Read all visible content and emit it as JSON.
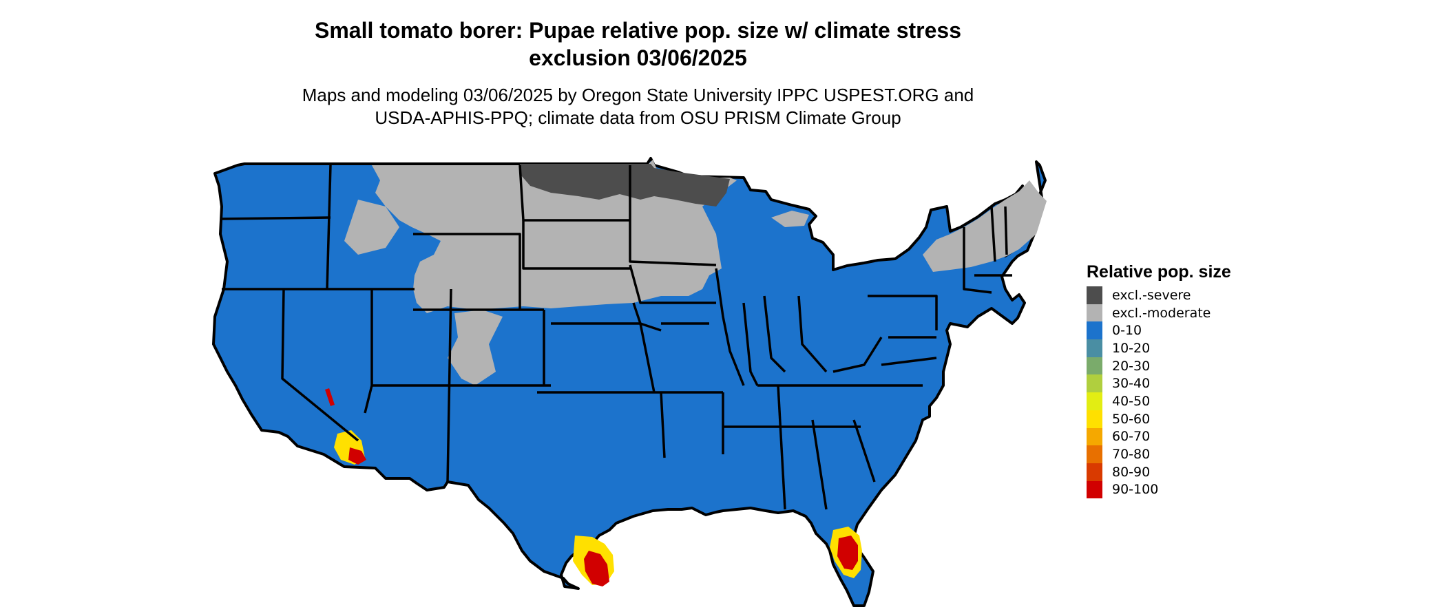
{
  "title_line1": "Small tomato borer: Pupae relative pop. size w/ climate stress",
  "title_line2": "exclusion 03/06/2025",
  "subtitle_line1": "Maps and modeling 03/06/2025 by Oregon State University IPPC USPEST.ORG and",
  "subtitle_line2": "USDA-APHIS-PPQ; climate data from OSU PRISM Climate Group",
  "legend": {
    "title": "Relative pop. size",
    "items": [
      {
        "label": "excl.-severe",
        "color": "#4d4d4d"
      },
      {
        "label": "excl.-moderate",
        "color": "#b3b3b3"
      },
      {
        "label": "0-10",
        "color": "#1c73cc"
      },
      {
        "label": "10-20",
        "color": "#4a8ea3"
      },
      {
        "label": "20-30",
        "color": "#7aab6b"
      },
      {
        "label": "30-40",
        "color": "#b0cf3e"
      },
      {
        "label": "40-50",
        "color": "#e2ed13"
      },
      {
        "label": "50-60",
        "color": "#ffe000"
      },
      {
        "label": "60-70",
        "color": "#f5a800"
      },
      {
        "label": "70-80",
        "color": "#e87000"
      },
      {
        "label": "80-90",
        "color": "#d93a00"
      },
      {
        "label": "90-100",
        "color": "#d10000"
      }
    ]
  }
}
